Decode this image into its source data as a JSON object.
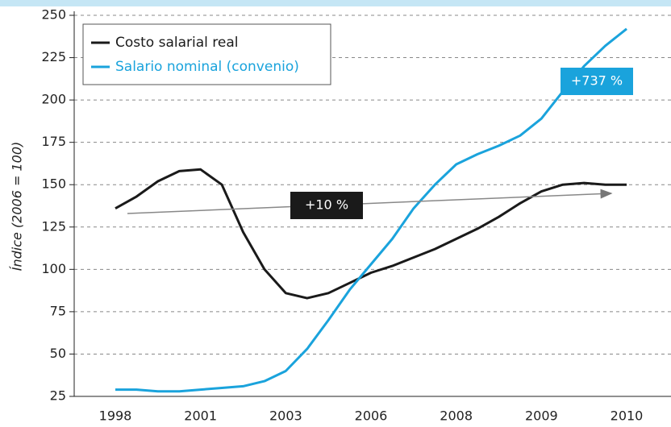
{
  "chart_data": {
    "type": "line",
    "categories": [
      "1998",
      null,
      null,
      null,
      "2001",
      null,
      null,
      null,
      "2003",
      null,
      null,
      null,
      "2006",
      null,
      null,
      null,
      "2008",
      null,
      null,
      null,
      "2009",
      null,
      null,
      null,
      "2010"
    ],
    "series": [
      {
        "name": "Costo salarial real",
        "color": "#1a1a1a",
        "values": [
          136,
          143,
          152,
          158,
          159,
          150,
          122,
          100,
          86,
          83,
          86,
          92,
          98,
          102,
          107,
          112,
          118,
          124,
          131,
          139,
          146,
          150,
          151,
          150,
          150
        ]
      },
      {
        "name": "Salario nominal (convenio)",
        "color": "#1aa3dc",
        "values": [
          29,
          29,
          28,
          28,
          29,
          30,
          31,
          34,
          40,
          53,
          70,
          88,
          103,
          118,
          136,
          150,
          162,
          168,
          173,
          179,
          189,
          205,
          220,
          232,
          242
        ]
      }
    ],
    "ylabel": "Índice (2006 = 100)",
    "ylim": [
      25,
      250
    ],
    "yticks": [
      25,
      50,
      75,
      100,
      125,
      150,
      175,
      200,
      225,
      250
    ],
    "grid": true,
    "legend": "upper left",
    "annotations": [
      "+737 %",
      "+10 %"
    ]
  }
}
